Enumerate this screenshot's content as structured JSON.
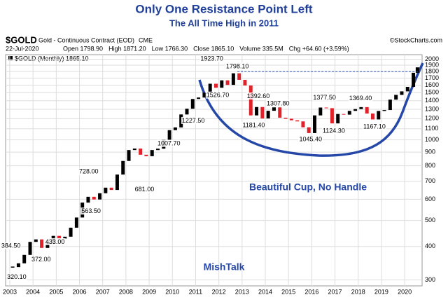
{
  "chart_data": {
    "type": "candlestick",
    "title": "Only One Resistance Point Left",
    "subtitle": "The All Time High in 2011",
    "symbol": "$GOLD",
    "description": "Gold - Continuous Contract (EOD)",
    "exchange": "CME",
    "date": "22-Jul-2020",
    "quote": [
      "Open 1798.90",
      "High 1871.20",
      "Low 1766.30",
      "Close 1865.10",
      "Volume 335.5M",
      "Chg +64.60 (+3.59%)"
    ],
    "source": "©StockCharts.com",
    "legend": "$GOLD (Monthly) 1865.10",
    "up_color": "#000000",
    "down_color": "#e0222a",
    "x": [
      2003.125,
      2003.375,
      2003.625,
      2003.875,
      2004.125,
      2004.375,
      2004.625,
      2004.875,
      2005.125,
      2005.375,
      2005.625,
      2005.875,
      2006.125,
      2006.375,
      2006.625,
      2006.875,
      2007.125,
      2007.375,
      2007.625,
      2007.875,
      2008.125,
      2008.375,
      2008.625,
      2008.875,
      2009.125,
      2009.375,
      2009.625,
      2009.875,
      2010.125,
      2010.375,
      2010.625,
      2010.875,
      2011.125,
      2011.375,
      2011.625,
      2011.875,
      2012.125,
      2012.375,
      2012.625,
      2012.875,
      2013.125,
      2013.375,
      2013.625,
      2013.875,
      2014.125,
      2014.375,
      2014.625,
      2014.875,
      2015.125,
      2015.375,
      2015.625,
      2015.875,
      2016.125,
      2016.375,
      2016.625,
      2016.875,
      2017.125,
      2017.375,
      2017.625,
      2017.875,
      2018.125,
      2018.375,
      2018.625,
      2018.875,
      2019.125,
      2019.375,
      2019.625,
      2019.875,
      2020.125,
      2020.375,
      2020.55
    ],
    "values": [
      335,
      346,
      372,
      416,
      425,
      395,
      415,
      438,
      428,
      435,
      470,
      513,
      583,
      613,
      599,
      632,
      663,
      650,
      742,
      834,
      916,
      928,
      880,
      869,
      916,
      927,
      1001,
      1087,
      1113,
      1244,
      1307,
      1421,
      1439,
      1500,
      1620,
      1565,
      1668,
      1604,
      1772,
      1675,
      1595,
      1234,
      1326,
      1202,
      1284,
      1322,
      1210,
      1199,
      1183,
      1172,
      1114,
      1060,
      1234,
      1320,
      1313,
      1152,
      1249,
      1242,
      1283,
      1303,
      1325,
      1254,
      1192,
      1282,
      1292,
      1413,
      1472,
      1517,
      1577,
      1780,
      1865
    ],
    "annotations": [
      {
        "x": 2011.7,
        "value": {
          "value": 1923.7,
          "label": "1923.70"
        }
      },
      {
        "x": 2012.8,
        "value": {
          "value": 1798.1,
          "label": "1798.10"
        }
      },
      {
        "x": 2011.95,
        "value": {
          "value": 1526.7,
          "label": "1526.70"
        }
      },
      {
        "x": 2013.7,
        "value": {
          "value": 1392.6,
          "label": "1392.60"
        }
      },
      {
        "x": 2014.55,
        "value": {
          "value": 1307.8,
          "label": "1307.80"
        }
      },
      {
        "x": 2013.5,
        "value": {
          "value": 1181.4,
          "label": "1181.40"
        }
      },
      {
        "x": 2015.95,
        "value": {
          "value": 1045.4,
          "label": "1045.40"
        }
      },
      {
        "x": 2016.55,
        "value": {
          "value": 1377.5,
          "label": "1377.50"
        }
      },
      {
        "x": 2016.95,
        "value": {
          "value": 1124.3,
          "label": "1124.30"
        }
      },
      {
        "x": 2018.1,
        "value": {
          "value": 1369.4,
          "label": "1369.40"
        }
      },
      {
        "x": 2018.7,
        "value": {
          "value": 1167.1,
          "label": "1167.10"
        }
      },
      {
        "x": 2010.9,
        "value": {
          "value": 1227.5,
          "label": "1227.50"
        }
      },
      {
        "x": 2009.85,
        "value": {
          "value": 1007.7,
          "label": "1007.70"
        }
      },
      {
        "x": 2006.4,
        "value": {
          "value": 728,
          "label": "728.00"
        }
      },
      {
        "x": 2008.8,
        "value": {
          "value": 681,
          "label": "681.00"
        }
      },
      {
        "x": 2006.5,
        "value": {
          "value": 563.5,
          "label": "563.50"
        }
      },
      {
        "x": 2004.95,
        "value": {
          "value": 433,
          "label": "433.00"
        }
      },
      {
        "x": 2004.35,
        "value": {
          "value": 372,
          "label": "372.00"
        }
      },
      {
        "x": 2003.05,
        "value": {
          "value": 384.5,
          "label": "384.50"
        }
      },
      {
        "x": 2003.3,
        "value": {
          "value": 320.1,
          "label": "320.10"
        }
      }
    ],
    "notes": [
      "Beautiful Cup, No Handle",
      "MishTalk"
    ],
    "xlim": [
      2002.82,
      2020.75
    ],
    "xticks": [
      2003,
      2004,
      2005,
      2006,
      2007,
      2008,
      2009,
      2010,
      2011,
      2012,
      2013,
      2014,
      2015,
      2016,
      2017,
      2018,
      2019,
      2020
    ],
    "ylim": [
      285,
      2080
    ],
    "yticks": [
      300,
      400,
      500,
      600,
      700,
      800,
      900,
      1000,
      1100,
      1200,
      1300,
      1400,
      1500,
      1600,
      1700,
      1800,
      1900,
      2000
    ],
    "log_scale": true,
    "grid": true
  }
}
